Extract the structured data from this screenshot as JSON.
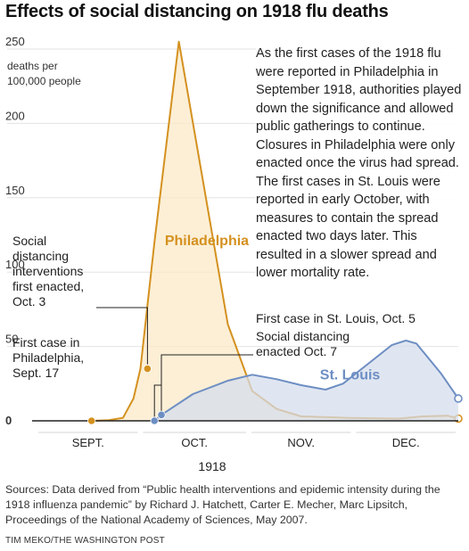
{
  "chart_data": {
    "type": "area",
    "title": "Effects of social distancing on 1918 flu deaths",
    "ylabel": "deaths per\n100,000 people",
    "ylim": [
      0,
      250
    ],
    "yticks": [
      0,
      50,
      100,
      150,
      200,
      250
    ],
    "xlabel": "1918",
    "months": [
      "SEPT.",
      "OCT.",
      "NOV.",
      "DEC."
    ],
    "grid": true,
    "series": [
      {
        "name": "Philadelphia",
        "color": "#d4911f",
        "fill": "#fbe9c6",
        "points": [
          [
            "1918-09-17",
            0
          ],
          [
            "1918-09-22",
            0.5
          ],
          [
            "1918-09-26",
            2
          ],
          [
            "1918-09-29",
            15
          ],
          [
            "1918-10-01",
            35
          ],
          [
            "1918-10-05",
            120
          ],
          [
            "1918-10-12",
            255
          ],
          [
            "1918-10-19",
            160
          ],
          [
            "1918-10-26",
            65
          ],
          [
            "1918-11-02",
            20
          ],
          [
            "1918-11-09",
            8
          ],
          [
            "1918-11-16",
            3
          ],
          [
            "1918-11-30",
            2
          ],
          [
            "1918-12-14",
            1.5
          ],
          [
            "1918-12-21",
            3
          ],
          [
            "1918-12-28",
            3.5
          ],
          [
            "1918-12-31",
            1.5
          ]
        ]
      },
      {
        "name": "St. Louis",
        "color": "#6d8ec3",
        "fill": "#d4dcec",
        "points": [
          [
            "1918-10-05",
            0
          ],
          [
            "1918-10-07",
            4
          ],
          [
            "1918-10-16",
            18
          ],
          [
            "1918-10-26",
            27
          ],
          [
            "1918-11-02",
            31
          ],
          [
            "1918-11-09",
            28
          ],
          [
            "1918-11-16",
            24
          ],
          [
            "1918-11-23",
            21
          ],
          [
            "1918-11-28",
            25
          ],
          [
            "1918-12-05",
            38
          ],
          [
            "1918-12-12",
            51
          ],
          [
            "1918-12-16",
            54
          ],
          [
            "1918-12-19",
            52
          ],
          [
            "1918-12-26",
            32
          ],
          [
            "1918-12-31",
            15
          ]
        ]
      }
    ],
    "annotations": [
      {
        "id": "phl-first-case",
        "date": "1918-09-17",
        "value": 0,
        "series": "Philadelphia",
        "lines": [
          "First case in",
          "Philadelphia,",
          "Sept. 17"
        ]
      },
      {
        "id": "phl-interventions",
        "date": "1918-10-03",
        "value": 35,
        "series": "Philadelphia",
        "lines": [
          "Social",
          "distancing",
          "interventions",
          "first enacted,",
          "Oct. 3"
        ]
      },
      {
        "id": "stl-first-case",
        "date": "1918-10-05",
        "value": 0,
        "series": "St. Louis",
        "lines": [
          "First case in St. Louis, Oct. 5"
        ]
      },
      {
        "id": "stl-distancing",
        "date": "1918-10-07",
        "value": 4,
        "series": "St. Louis",
        "lines": [
          "Social distancing",
          "enacted Oct. 7"
        ]
      }
    ]
  },
  "note": "As the first cases of the 1918 flu were reported in Philadelphia in September 1918, authorities played down the significance and allowed public gatherings to continue. Closures in Philadelphia were only enacted once the virus had spread. The first cases in St. Louis were reported in early October, with measures to contain the spread enacted two days later. This resulted in a slower spread and lower mortality rate.",
  "sources": "Sources: Data derived from “Public health interventions and epidemic intensity during the 1918 influenza pandemic” by Richard J. Hatchett, Carter E. Mecher, Marc Lipsitch, Proceedings of the National Academy of Sciences, May 2007.",
  "credit": "TIM MEKO/THE WASHINGTON POST"
}
